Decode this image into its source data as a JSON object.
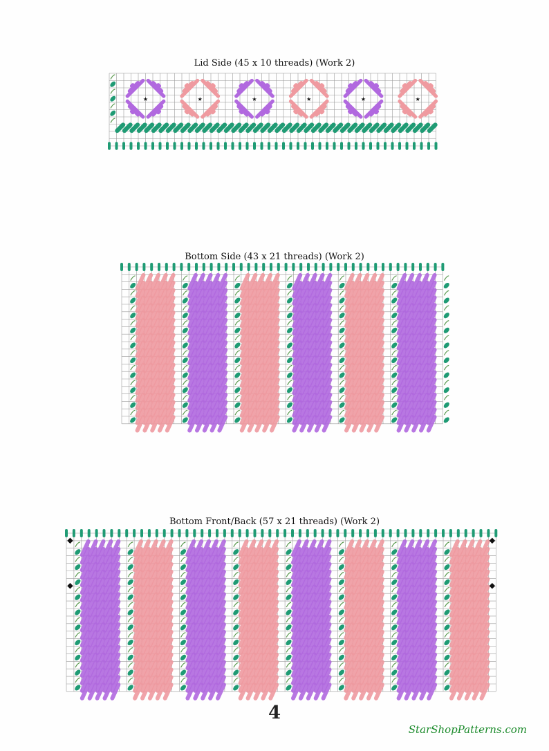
{
  "colors": {
    "purple": "#b169df",
    "pink": "#ef9aa0",
    "teal": "#1f9b74",
    "outline": "#5c9a50",
    "grid": "#9a9a9a"
  },
  "charts": [
    {
      "id": "lid-side",
      "title": "Lid Side (45 x 10 threads) (Work 2)",
      "cols": 45,
      "rows": 10
    },
    {
      "id": "bottom-side",
      "title": "Bottom Side (43 x 21 threads) (Work 2)",
      "cols": 43,
      "rows": 21
    },
    {
      "id": "bottom-front-back",
      "title": "Bottom Front/Back (57 x 21 threads) (Work 2)",
      "cols": 57,
      "rows": 21
    }
  ],
  "lid_motifs": [
    "purple",
    "pink",
    "purple",
    "pink",
    "purple",
    "pink"
  ],
  "bottom_side_bands": [
    "pink",
    "purple",
    "pink",
    "purple",
    "pink",
    "purple"
  ],
  "bottom_front_bands": [
    "purple",
    "pink",
    "purple",
    "pink",
    "purple",
    "pink",
    "purple",
    "pink"
  ],
  "page_number": "4",
  "credit": "StarShopPatterns.com"
}
